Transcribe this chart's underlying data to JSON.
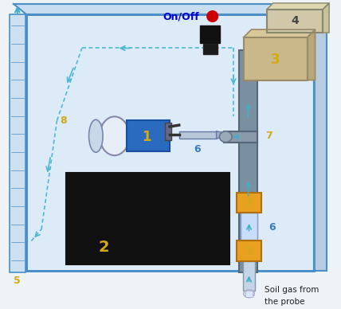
{
  "bg_color": "#eef3f8",
  "box_outer_color": "#4a8fc8",
  "box_fill": "#ddeaf8",
  "top_face_color": "#c8ddf0",
  "right_face_color": "#b8cce0",
  "title_on_off": "On/Off",
  "led_color": "#cc0000",
  "label_color": "#d4a817",
  "pump_color": "#2a6abf",
  "pump_label": "1",
  "battery_color": "#111111",
  "battery_label": "2",
  "vacuometer_color": "#c8b88a",
  "vacuometer_label": "3",
  "display_color": "#d0c8a8",
  "display_label": "4",
  "tube_side_label": "5",
  "vinyl_label": "6",
  "connector_label": "7",
  "fluxmeter_label": "8",
  "soil_gas_text": "Soil gas from\nthe probe",
  "arrow_color": "#40b0c8",
  "pipe_color": "#7a8f9f",
  "connector_orange": "#e8a020",
  "dashed_color": "#50b8d0",
  "white": "#ffffff"
}
